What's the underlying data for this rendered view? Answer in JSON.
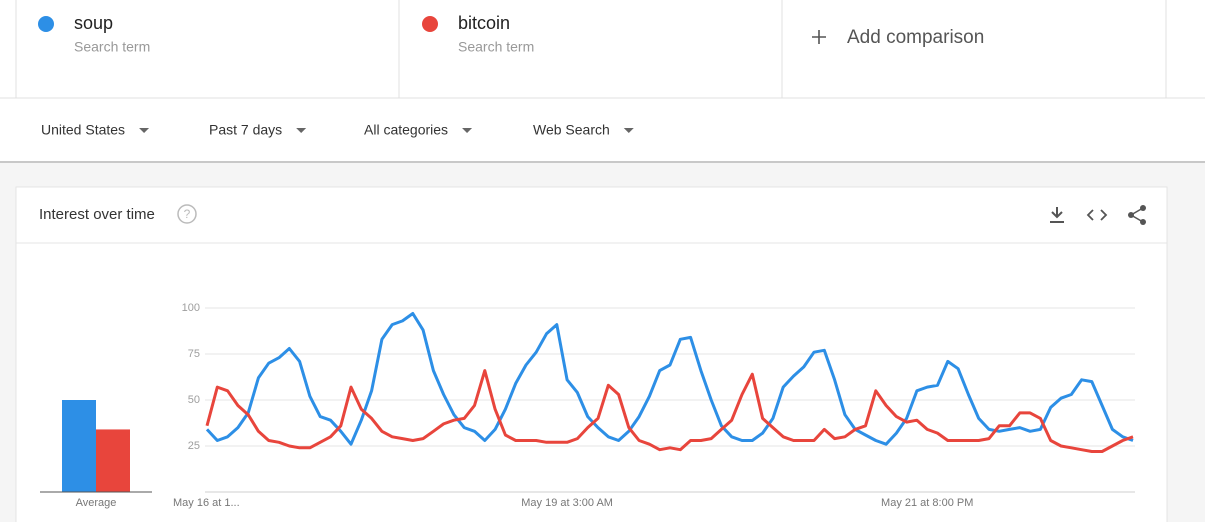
{
  "search_term_caption": "Search term",
  "add_comparison": "Add comparison",
  "filters": [
    "United States",
    "Past 7 days",
    "All categories",
    "Web Search"
  ],
  "card_title": "Interest over time",
  "average_label": "Average",
  "chart_data": {
    "type": "line",
    "categories": [
      "May 16 at 1...",
      null,
      null,
      null,
      null,
      null,
      null,
      null,
      null,
      null,
      null,
      null,
      null,
      null,
      null,
      null,
      null,
      null,
      null,
      null,
      null,
      null,
      null,
      null,
      null,
      null,
      null,
      null,
      null,
      null,
      null,
      null,
      null,
      null,
      null,
      "May 19 at 3:00 AM",
      null,
      null,
      null,
      null,
      null,
      null,
      null,
      null,
      null,
      null,
      null,
      null,
      null,
      null,
      null,
      null,
      null,
      null,
      null,
      null,
      null,
      null,
      null,
      null,
      null,
      null,
      null,
      null,
      null,
      null,
      null,
      null,
      null,
      null,
      "May 21 at 8:00 PM",
      null,
      null,
      null,
      null,
      null,
      null,
      null,
      null,
      null,
      null,
      null,
      null,
      null,
      null,
      null,
      null,
      null,
      null,
      null,
      null
    ],
    "series": [
      {
        "name": "soup",
        "color": "#2d8fe6",
        "average": 50,
        "values": [
          34,
          28,
          30,
          35,
          43,
          62,
          70,
          73,
          78,
          71,
          52,
          41,
          39,
          33,
          26,
          39,
          55,
          83,
          91,
          93,
          97,
          88,
          66,
          53,
          42,
          35,
          33,
          28,
          34,
          45,
          59,
          69,
          76,
          86,
          91,
          61,
          54,
          41,
          35,
          30,
          28,
          33,
          41,
          52,
          66,
          69,
          83,
          84,
          66,
          50,
          36,
          30,
          28,
          28,
          32,
          40,
          57,
          63,
          68,
          76,
          77,
          61,
          42,
          34,
          31,
          28,
          26,
          32,
          40,
          55,
          57,
          58,
          71,
          67,
          53,
          40,
          34,
          33,
          34,
          35,
          33,
          34,
          46,
          51,
          53,
          61,
          60,
          47,
          34,
          30,
          28
        ]
      },
      {
        "name": "bitcoin",
        "color": "#e8453c",
        "average": 34,
        "values": [
          36,
          57,
          55,
          47,
          42,
          33,
          28,
          27,
          25,
          24,
          24,
          27,
          30,
          36,
          57,
          45,
          40,
          33,
          30,
          29,
          28,
          29,
          33,
          37,
          39,
          40,
          47,
          66,
          45,
          31,
          28,
          28,
          28,
          27,
          27,
          27,
          29,
          35,
          40,
          58,
          53,
          35,
          28,
          26,
          23,
          24,
          23,
          28,
          28,
          29,
          34,
          39,
          53,
          64,
          40,
          35,
          30,
          28,
          28,
          28,
          34,
          29,
          30,
          34,
          36,
          55,
          47,
          41,
          38,
          39,
          34,
          32,
          28,
          28,
          28,
          28,
          29,
          36,
          36,
          43,
          43,
          40,
          28,
          25,
          24,
          23,
          22,
          22,
          25,
          28,
          30
        ]
      }
    ],
    "ylim": [
      0,
      100
    ],
    "yticks": [
      25,
      50,
      75,
      100
    ],
    "grid": true
  }
}
